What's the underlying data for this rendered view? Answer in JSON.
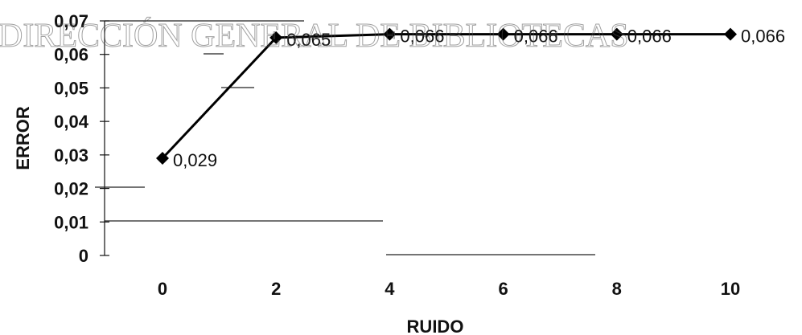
{
  "watermark": "DIRECCIÓN GENERAL DE BIBLIOTECAS",
  "chart_data": {
    "type": "line",
    "title": "",
    "xlabel": "RUIDO",
    "ylabel": "ERROR",
    "x": [
      0,
      2,
      4,
      6,
      8,
      10
    ],
    "series": [
      {
        "values": [
          0.029,
          0.065,
          0.066,
          0.066,
          0.066,
          0.066
        ]
      }
    ],
    "data_labels": [
      "0,029",
      "0,065",
      "0,066",
      "0,066",
      "0,066",
      "0,066"
    ],
    "x_ticks": [
      "0",
      "2",
      "4",
      "6",
      "8",
      "10"
    ],
    "y_ticks": [
      "0",
      "0,01",
      "0,02",
      "0,03",
      "0,04",
      "0,05",
      "0,06",
      "0,07"
    ],
    "ylim": [
      0,
      0.07
    ],
    "xlim": [
      0,
      10
    ],
    "grid": false,
    "legend": "none",
    "line_color": "#000000",
    "marker": "diamond"
  }
}
